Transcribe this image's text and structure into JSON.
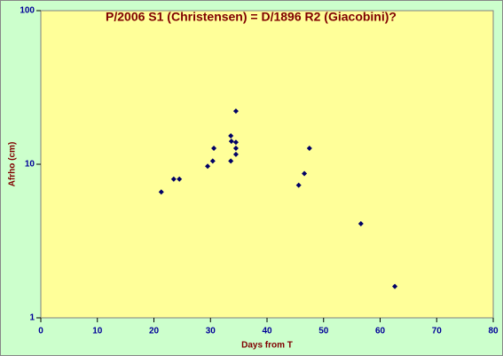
{
  "chart_data": {
    "type": "scatter",
    "title": "P/2006 S1 (Christensen) = D/1896 R2 (Giacobini)?",
    "x_label": "Days from T",
    "y_label": "Afrho (cm)",
    "x": [
      21.3,
      23.5,
      24.5,
      29.5,
      30.4,
      30.6,
      33.6,
      33.7,
      33.6,
      34.5,
      34.5,
      34.5,
      34.5,
      45.6,
      46.6,
      47.5,
      56.6,
      62.6
    ],
    "y": [
      6.6,
      8.0,
      8.0,
      9.7,
      10.5,
      12.7,
      15.3,
      14.1,
      10.5,
      22.2,
      13.9,
      12.7,
      11.6,
      7.3,
      8.7,
      12.7,
      4.1,
      1.6
    ],
    "color": "#000066",
    "xlim": [
      0,
      80
    ],
    "xticks": [
      0,
      10,
      20,
      30,
      40,
      50,
      60,
      70,
      80
    ],
    "ylim": [
      1,
      100
    ],
    "yticks": [
      1,
      10,
      100
    ],
    "y_scale": "log"
  }
}
